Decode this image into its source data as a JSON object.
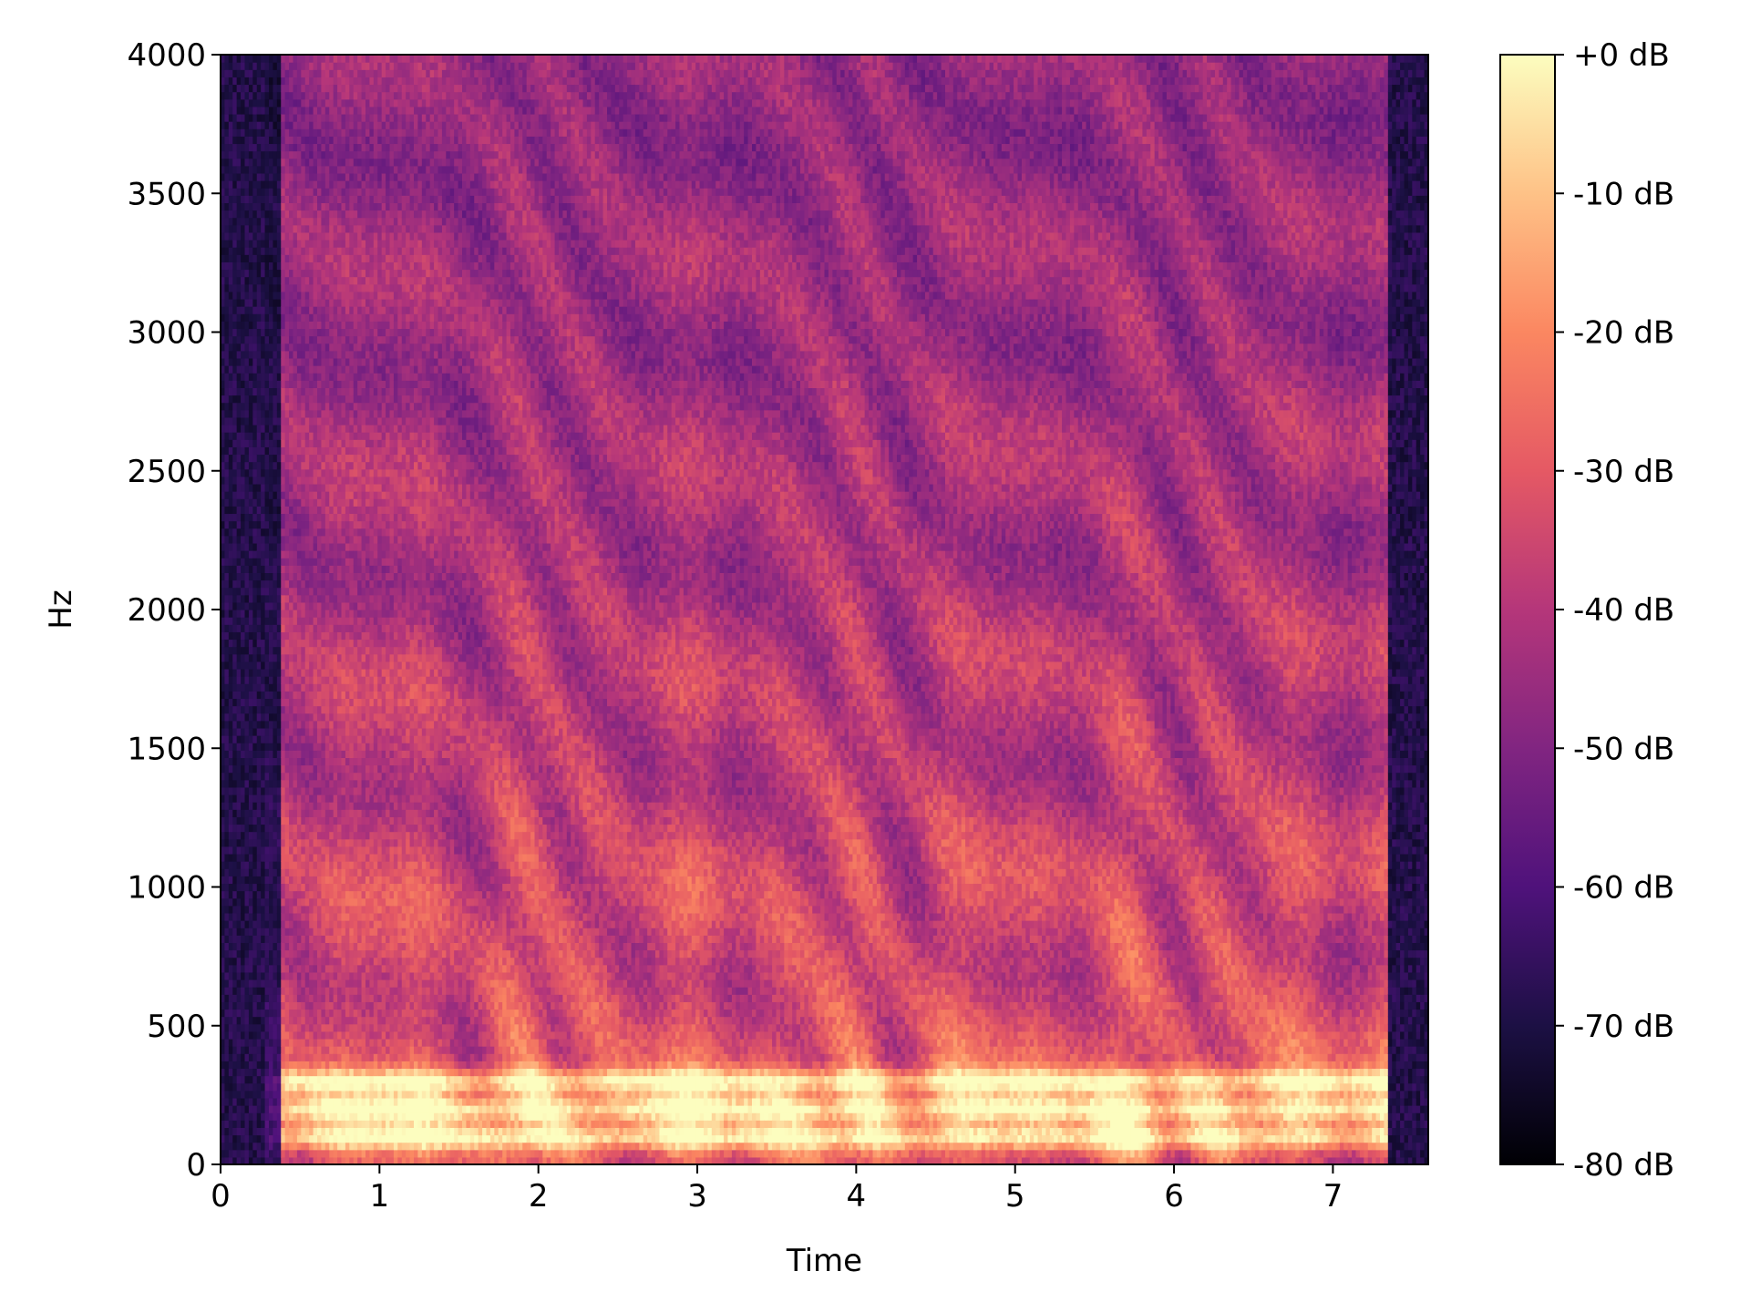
{
  "chart_data": {
    "type": "heatmap",
    "title": "",
    "xlabel": "Time",
    "ylabel": "Hz",
    "xlim": [
      0,
      7.6
    ],
    "ylim": [
      0,
      4000
    ],
    "x_ticks": [
      0,
      1,
      2,
      3,
      4,
      5,
      6,
      7
    ],
    "x_tick_labels": [
      "0",
      "1",
      "2",
      "3",
      "4",
      "5",
      "6",
      "7"
    ],
    "y_ticks": [
      0,
      500,
      1000,
      1500,
      2000,
      2500,
      3000,
      3500,
      4000
    ],
    "y_tick_labels": [
      "0",
      "500",
      "1000",
      "1500",
      "2000",
      "2500",
      "3000",
      "3500",
      "4000"
    ],
    "colorbar": {
      "colormap": "magma",
      "range_db": [
        -80,
        0
      ],
      "ticks": [
        0,
        -10,
        -20,
        -30,
        -40,
        -50,
        -60,
        -70,
        -80
      ],
      "tick_labels": [
        "+0 dB",
        "-10 dB",
        "-20 dB",
        "-30 dB",
        "-40 dB",
        "-50 dB",
        "-60 dB",
        "-70 dB",
        "-80 dB"
      ],
      "stops": [
        "#000004",
        "#1c1044",
        "#4f127b",
        "#812581",
        "#b5367a",
        "#e55964",
        "#fb8761",
        "#fec287",
        "#fcfdbf"
      ]
    },
    "sound_segments": [
      {
        "t_start": 0.0,
        "t_end": 0.27,
        "level": "silence"
      },
      {
        "t_start": 0.27,
        "t_end": 0.38,
        "level": "quiet"
      },
      {
        "t_start": 0.38,
        "t_end": 7.35,
        "level": "speech"
      },
      {
        "t_start": 7.35,
        "t_end": 7.6,
        "level": "silence"
      }
    ],
    "pitch_harmonics_hz": [
      100,
      200,
      300
    ],
    "grid": false
  }
}
